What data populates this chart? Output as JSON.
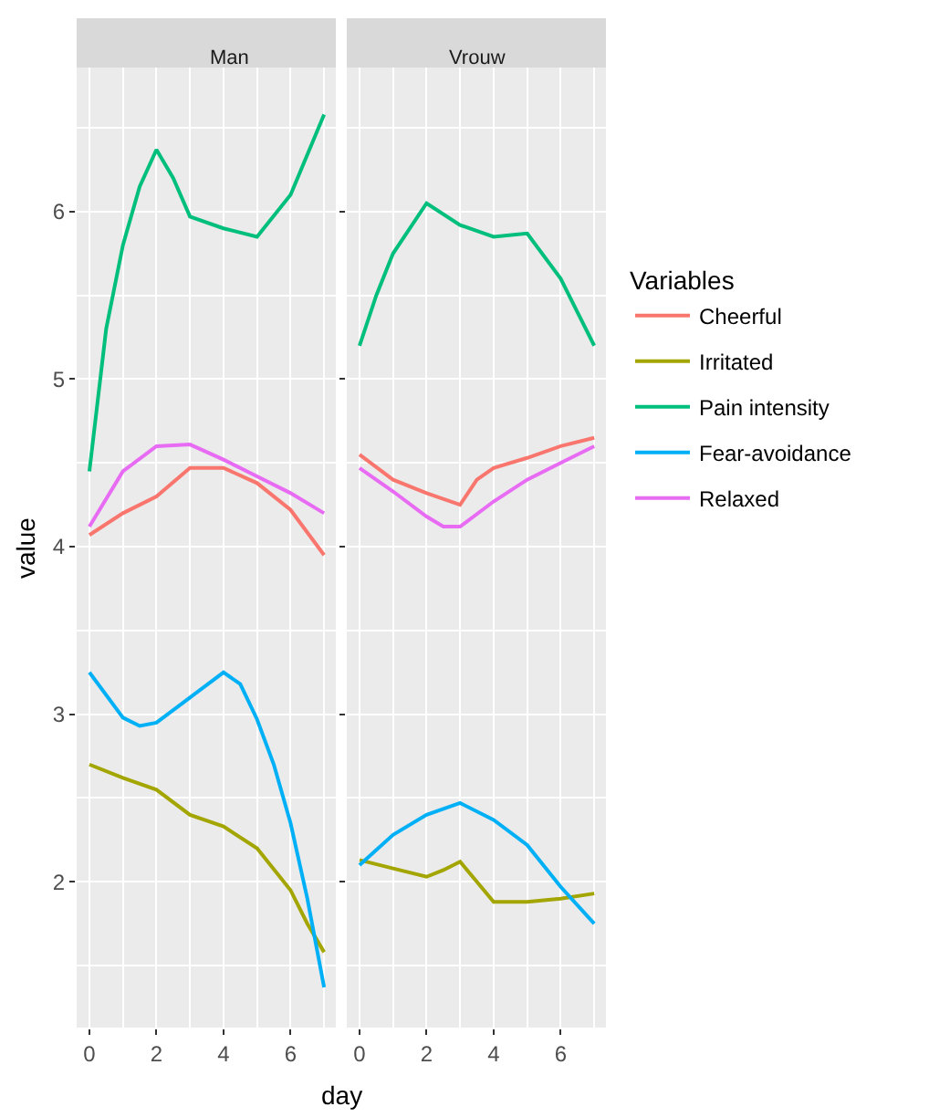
{
  "chart_data": [
    {
      "type": "line",
      "title": "Man",
      "xlabel": "day",
      "ylabel": "value",
      "legend_title": "Variables",
      "legend": "right",
      "grid": true,
      "xlim": [
        -0.38,
        7.35
      ],
      "xticks": [
        0,
        2,
        4,
        6
      ],
      "ylim": [
        1.13,
        6.86
      ],
      "yticks": [
        2,
        3,
        4,
        5,
        6
      ],
      "series": [
        {
          "name": "Cheerful",
          "color": "#f8766d",
          "x": [
            0,
            1,
            2,
            3,
            4,
            5,
            6,
            7
          ],
          "values": [
            4.07,
            4.2,
            4.3,
            4.47,
            4.47,
            4.38,
            4.22,
            3.95
          ]
        },
        {
          "name": "Irritated",
          "color": "#a3a500",
          "x": [
            0,
            1,
            2,
            3,
            4,
            5,
            6,
            6.5,
            7
          ],
          "values": [
            2.7,
            2.62,
            2.55,
            2.4,
            2.33,
            2.2,
            1.95,
            1.75,
            1.58
          ]
        },
        {
          "name": "Pain intensity",
          "color": "#00bf7d",
          "x": [
            0,
            0.5,
            1,
            1.5,
            2,
            2.5,
            3,
            4,
            5,
            6,
            7
          ],
          "values": [
            4.45,
            5.3,
            5.8,
            6.15,
            6.37,
            6.2,
            5.97,
            5.9,
            5.85,
            6.1,
            6.58
          ]
        },
        {
          "name": "Fear-avoidance",
          "color": "#00b0f6",
          "x": [
            0,
            1,
            1.5,
            2,
            3,
            4,
            4.5,
            5,
            5.5,
            6,
            6.5,
            7
          ],
          "values": [
            3.25,
            2.98,
            2.93,
            2.95,
            3.1,
            3.25,
            3.18,
            2.97,
            2.7,
            2.35,
            1.9,
            1.37
          ]
        },
        {
          "name": "Relaxed",
          "color": "#e76bf3",
          "x": [
            0,
            1,
            2,
            3,
            4,
            5,
            6,
            7
          ],
          "values": [
            4.12,
            4.45,
            4.6,
            4.61,
            4.52,
            4.42,
            4.32,
            4.2
          ]
        }
      ]
    },
    {
      "type": "line",
      "title": "Vrouw",
      "grid": true,
      "tick_labels": "x",
      "xlim": [
        -0.38,
        7.35
      ],
      "xticks": [
        0,
        2,
        4,
        6
      ],
      "ylim": [
        1.13,
        6.86
      ],
      "yticks": [
        2,
        3,
        4,
        5,
        6
      ],
      "series": [
        {
          "name": "Cheerful",
          "color": "#f8766d",
          "x": [
            0,
            1,
            2,
            3,
            3.5,
            4,
            5,
            6,
            7
          ],
          "values": [
            4.55,
            4.4,
            4.32,
            4.25,
            4.4,
            4.47,
            4.53,
            4.6,
            4.65
          ]
        },
        {
          "name": "Irritated",
          "color": "#a3a500",
          "x": [
            0,
            1,
            2,
            2.5,
            3,
            3.5,
            4,
            5,
            6,
            7
          ],
          "values": [
            2.13,
            2.08,
            2.03,
            2.07,
            2.12,
            2.0,
            1.88,
            1.88,
            1.9,
            1.93
          ]
        },
        {
          "name": "Pain intensity",
          "color": "#00bf7d",
          "x": [
            0,
            0.5,
            1,
            2,
            3,
            4,
            5,
            6,
            6.5,
            7
          ],
          "values": [
            5.2,
            5.5,
            5.75,
            6.05,
            5.92,
            5.85,
            5.87,
            5.6,
            5.4,
            5.2
          ]
        },
        {
          "name": "Fear-avoidance",
          "color": "#00b0f6",
          "x": [
            0,
            1,
            2,
            3,
            4,
            5,
            6,
            7
          ],
          "values": [
            2.1,
            2.28,
            2.4,
            2.47,
            2.37,
            2.22,
            1.97,
            1.75
          ]
        },
        {
          "name": "Relaxed",
          "color": "#e76bf3",
          "x": [
            0,
            1,
            2,
            2.5,
            3,
            4,
            5,
            6,
            7
          ],
          "values": [
            4.47,
            4.33,
            4.18,
            4.12,
            4.12,
            4.27,
            4.4,
            4.5,
            4.6
          ]
        }
      ]
    }
  ]
}
